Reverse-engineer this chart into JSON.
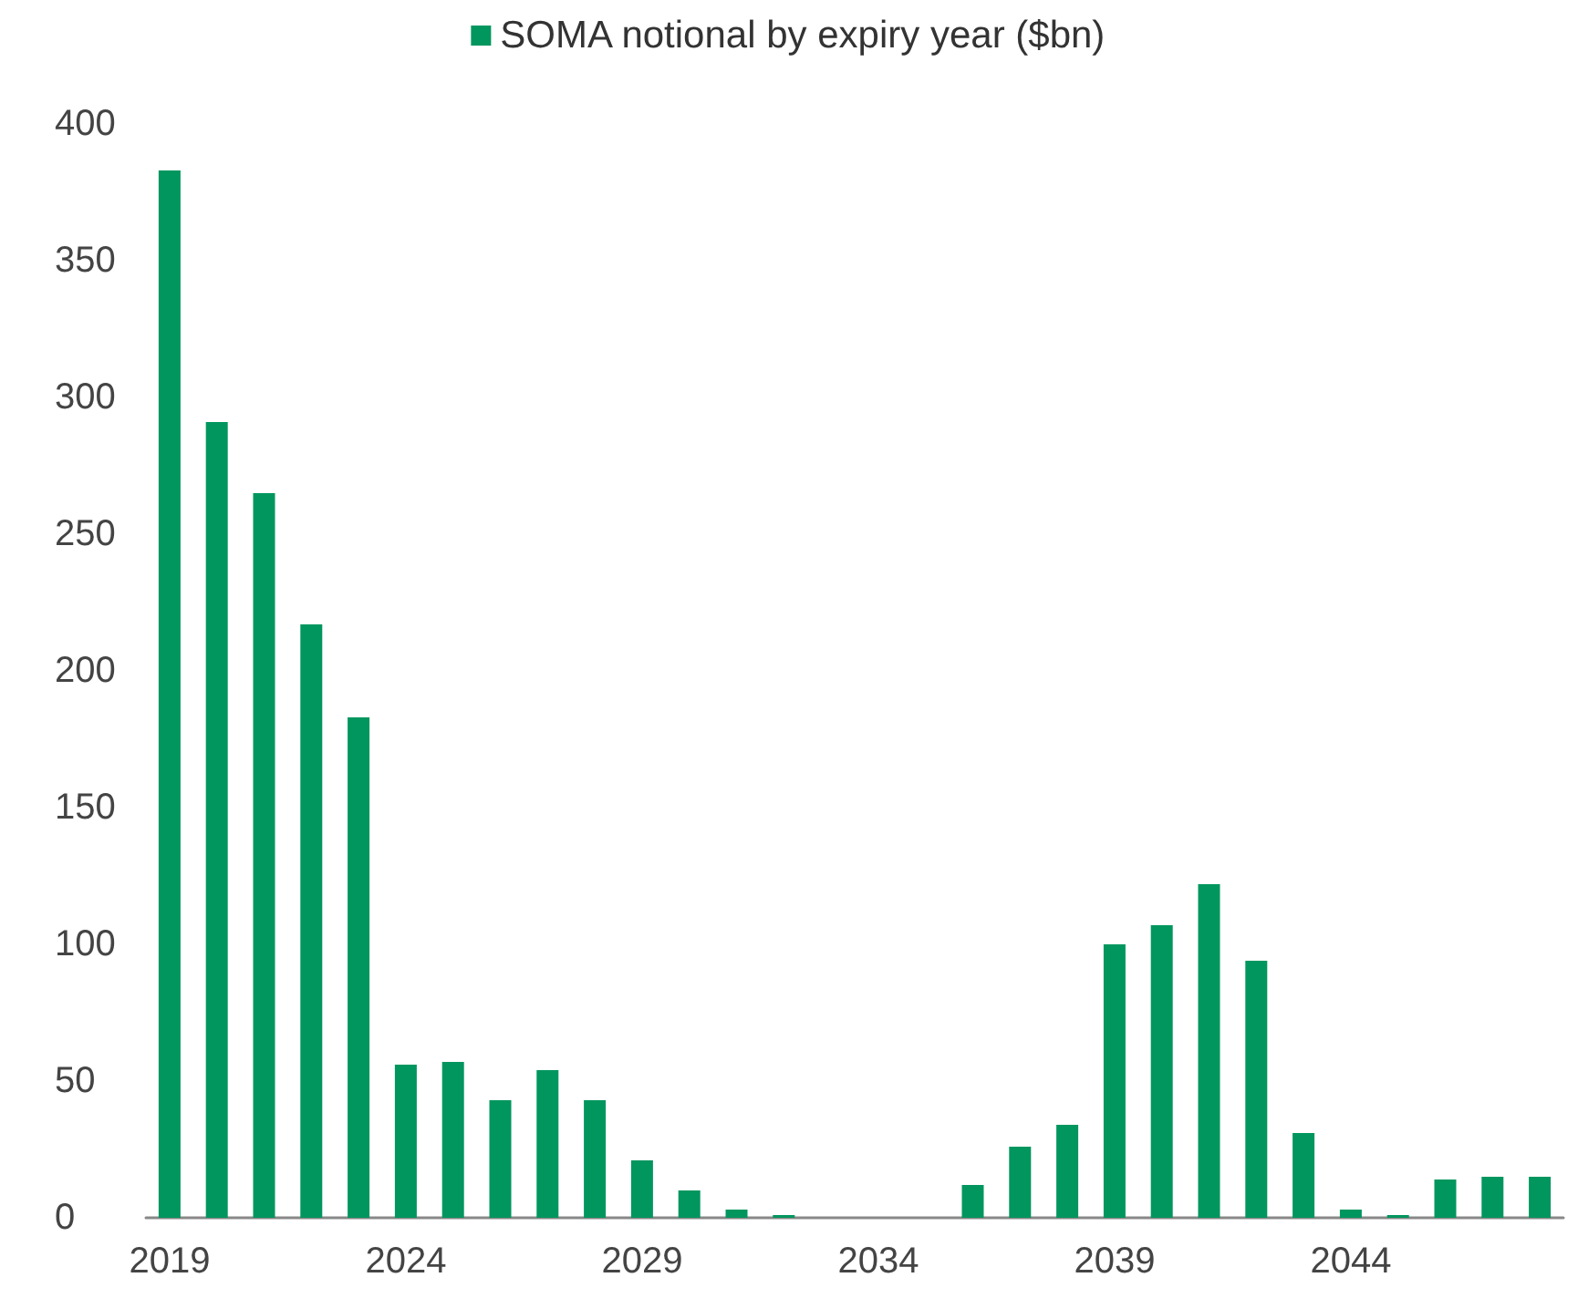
{
  "chart_data": {
    "type": "bar",
    "categories": [
      "2019",
      null,
      null,
      null,
      null,
      "2024",
      null,
      null,
      null,
      null,
      "2029",
      null,
      null,
      null,
      null,
      "2034",
      null,
      null,
      null,
      null,
      "2039",
      null,
      null,
      null,
      null,
      "2044",
      null,
      null,
      null,
      null
    ],
    "series": [
      {
        "name": "SOMA notional by expiry year ($bn)",
        "color": "#00965e",
        "values": [
          383,
          291,
          265,
          217,
          183,
          56,
          57,
          43,
          54,
          43,
          21,
          10,
          3,
          1,
          0,
          0,
          0,
          12,
          26,
          34,
          100,
          107,
          122,
          94,
          31,
          3,
          1,
          14,
          15,
          15
        ]
      }
    ],
    "ylim": [
      0,
      400
    ],
    "yticks": [
      0,
      50,
      100,
      150,
      200,
      250,
      300,
      350,
      400
    ],
    "grid": false,
    "legend": "top"
  }
}
